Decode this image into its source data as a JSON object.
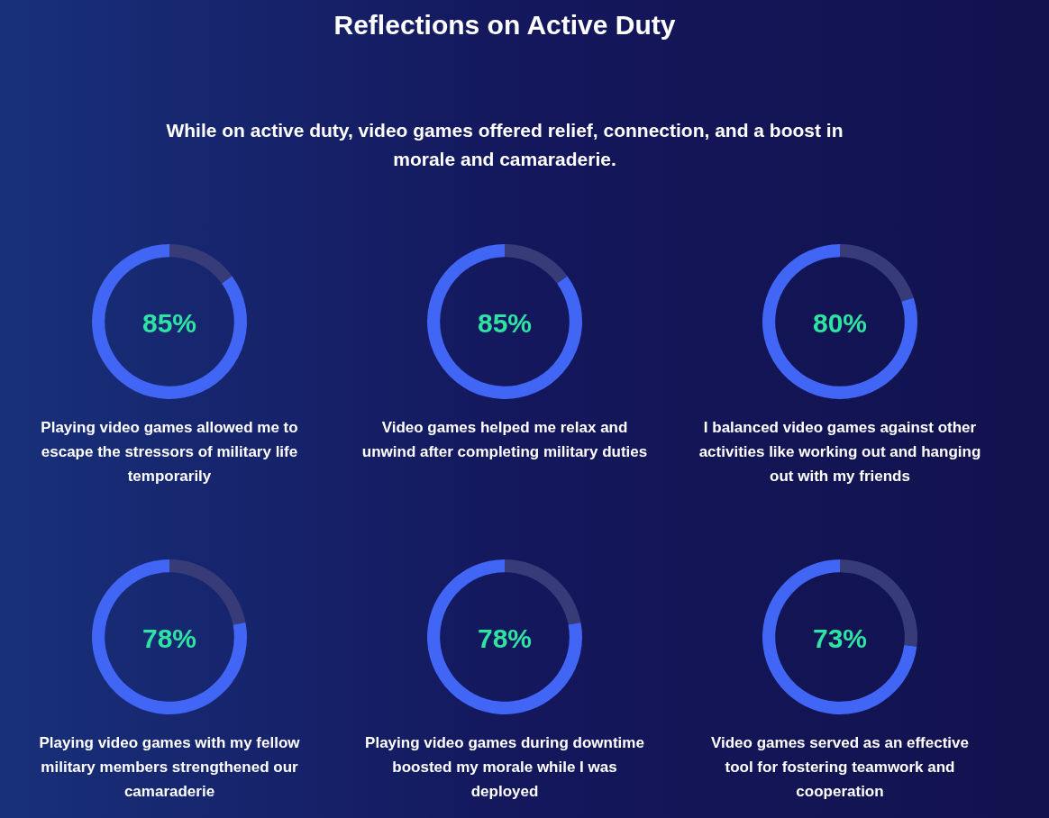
{
  "chart_data": [
    {
      "type": "other",
      "title": "Reflections on Active Duty",
      "subtitle": "While on active duty, video games offered relief, connection, and a boost in morale and camaraderie."
    },
    {
      "type": "donut",
      "categories": [
        null,
        null
      ],
      "values": [
        85,
        15
      ],
      "colors": [
        "#4166f5",
        "#373c78"
      ],
      "value_labels": [
        "85%",
        null
      ],
      "xlabel": "Playing video games allowed me to escape the stressors of military life temporarily"
    },
    {
      "type": "donut",
      "categories": [
        null,
        null
      ],
      "values": [
        85,
        15
      ],
      "colors": [
        "#4166f5",
        "#373c78"
      ],
      "value_labels": [
        "85%",
        null
      ],
      "xlabel": "Video games helped me relax and unwind after completing military duties"
    },
    {
      "type": "donut",
      "categories": [
        null,
        null
      ],
      "values": [
        80,
        20
      ],
      "colors": [
        "#4166f5",
        "#373c78"
      ],
      "value_labels": [
        "80%",
        null
      ],
      "xlabel": "I balanced video games against other activities like working out and hanging out with my friends"
    },
    {
      "type": "donut",
      "categories": [
        null,
        null
      ],
      "values": [
        78,
        22
      ],
      "colors": [
        "#4166f5",
        "#373c78"
      ],
      "value_labels": [
        "78%",
        null
      ],
      "xlabel": "Playing video games with my fellow military members strengthened our camaraderie"
    },
    {
      "type": "donut",
      "categories": [
        null,
        null
      ],
      "values": [
        78,
        22
      ],
      "colors": [
        "#4166f5",
        "#373c78"
      ],
      "value_labels": [
        "78%",
        null
      ],
      "xlabel": "Playing video games during downtime boosted my morale while I was deployed"
    },
    {
      "type": "donut",
      "categories": [
        null,
        null
      ],
      "values": [
        73,
        27
      ],
      "colors": [
        "#4166f5",
        "#373c78"
      ],
      "value_labels": [
        "73%",
        null
      ],
      "xlabel": "Video games served as an effective tool for fostering teamwork and cooperation"
    }
  ]
}
